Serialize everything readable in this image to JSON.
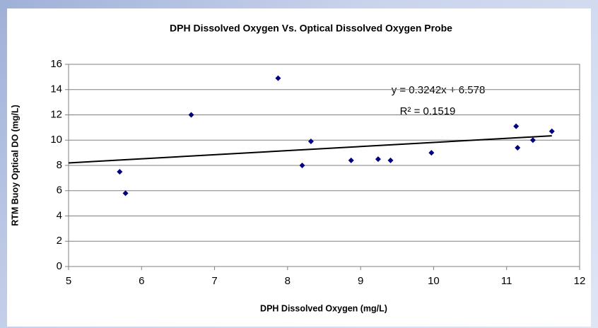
{
  "chart_data": {
    "type": "scatter",
    "title": "DPH Dissolved Oxygen Vs. Optical Dissolved Oxygen Probe",
    "x_label": "DPH Dissolved Oxygen (mg/L)",
    "y_label": "RTM Buoy  Optical DO  (mg/L)",
    "series": [
      {
        "color": "#000080",
        "x": [
          5.7,
          5.78,
          6.68,
          7.87,
          8.2,
          8.32,
          8.87,
          9.24,
          9.41,
          9.97,
          11.13,
          11.15,
          11.36,
          11.62
        ],
        "values": [
          7.5,
          5.8,
          12.0,
          14.9,
          8.0,
          9.9,
          8.4,
          8.5,
          8.4,
          9.0,
          11.1,
          9.4,
          10.0,
          10.7
        ]
      }
    ],
    "trendline": {
      "slope": 0.3242,
      "intercept": 6.578,
      "color": "#000000",
      "equation": "y = 0.3242x + 6.578",
      "r_squared": "R² = 0.1519"
    },
    "xlim": [
      5,
      12
    ],
    "xticks": [
      5,
      6,
      7,
      8,
      9,
      10,
      11,
      12
    ],
    "ylim": [
      0,
      16
    ],
    "yticks": [
      0,
      2,
      4,
      6,
      8,
      10,
      12,
      14,
      16
    ],
    "grid": true
  }
}
